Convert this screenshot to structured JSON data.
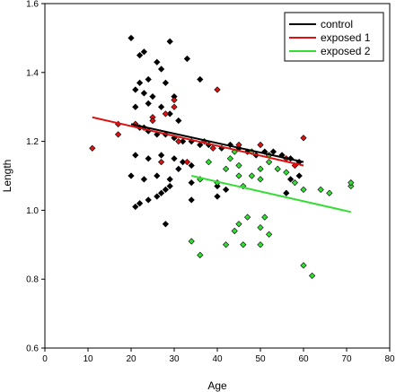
{
  "chart_data": {
    "type": "scatter",
    "title": "",
    "xlabel": "Age",
    "ylabel": "Length",
    "xlim": [
      0,
      80
    ],
    "ylim": [
      0.6,
      1.6
    ],
    "xticks": [
      0,
      10,
      20,
      30,
      40,
      50,
      60,
      70,
      80
    ],
    "yticks": [
      0.6,
      0.8,
      1.0,
      1.2,
      1.4,
      1.6
    ],
    "ytick_labels": [
      "0.6",
      "0.8",
      "1.0",
      "1.2",
      "1.4",
      "1.6"
    ],
    "grid": false,
    "legend_position": "top-right",
    "series": [
      {
        "name": "control",
        "color": "#000000",
        "points": [
          [
            20,
            1.5
          ],
          [
            29,
            1.49
          ],
          [
            23,
            1.46
          ],
          [
            22,
            1.45
          ],
          [
            26,
            1.43
          ],
          [
            27,
            1.41
          ],
          [
            24,
            1.38
          ],
          [
            33,
            1.44
          ],
          [
            36,
            1.38
          ],
          [
            22,
            1.37
          ],
          [
            21,
            1.35
          ],
          [
            23,
            1.34
          ],
          [
            25,
            1.33
          ],
          [
            28,
            1.37
          ],
          [
            30,
            1.33
          ],
          [
            24,
            1.31
          ],
          [
            21,
            1.3
          ],
          [
            27,
            1.3
          ],
          [
            29,
            1.28
          ],
          [
            31,
            1.26
          ],
          [
            21,
            1.25
          ],
          [
            22,
            1.24
          ],
          [
            23,
            1.24
          ],
          [
            24,
            1.23
          ],
          [
            26,
            1.22
          ],
          [
            28,
            1.22
          ],
          [
            30,
            1.21
          ],
          [
            32,
            1.2
          ],
          [
            34,
            1.2
          ],
          [
            36,
            1.19
          ],
          [
            38,
            1.19
          ],
          [
            41,
            1.18
          ],
          [
            43,
            1.19
          ],
          [
            45,
            1.18
          ],
          [
            47,
            1.17
          ],
          [
            49,
            1.16
          ],
          [
            51,
            1.17
          ],
          [
            53,
            1.17
          ],
          [
            55,
            1.16
          ],
          [
            57,
            1.15
          ],
          [
            59,
            1.14
          ],
          [
            21,
            1.16
          ],
          [
            24,
            1.15
          ],
          [
            27,
            1.16
          ],
          [
            30,
            1.15
          ],
          [
            32,
            1.14
          ],
          [
            20,
            1.1
          ],
          [
            23,
            1.09
          ],
          [
            26,
            1.1
          ],
          [
            29,
            1.09
          ],
          [
            31,
            1.12
          ],
          [
            34,
            1.13
          ],
          [
            22,
            1.02
          ],
          [
            21,
            1.01
          ],
          [
            27,
            1.05
          ],
          [
            28,
            1.06
          ],
          [
            29,
            1.07
          ],
          [
            26,
            1.04
          ],
          [
            24,
            1.03
          ],
          [
            34,
            1.08
          ],
          [
            40,
            1.07
          ],
          [
            42,
            1.06
          ],
          [
            56,
            1.05
          ],
          [
            59,
            1.1
          ],
          [
            57,
            1.09
          ],
          [
            28,
            0.96
          ],
          [
            34,
            1.03
          ],
          [
            40,
            1.04
          ]
        ]
      },
      {
        "name": "exposed 1",
        "color": "#dd1111",
        "points": [
          [
            11,
            1.18
          ],
          [
            17,
            1.22
          ],
          [
            17,
            1.25
          ],
          [
            21,
            1.25
          ],
          [
            25,
            1.27
          ],
          [
            25,
            1.26
          ],
          [
            28,
            1.28
          ],
          [
            30,
            1.32
          ],
          [
            30,
            1.3
          ],
          [
            31,
            1.2
          ],
          [
            33,
            1.14
          ],
          [
            37,
            1.2
          ],
          [
            39,
            1.18
          ],
          [
            40,
            1.35
          ],
          [
            45,
            1.19
          ],
          [
            48,
            1.17
          ],
          [
            50,
            1.19
          ],
          [
            52,
            1.16
          ],
          [
            56,
            1.15
          ],
          [
            58,
            1.13
          ],
          [
            60,
            1.21
          ],
          [
            27,
            1.14
          ]
        ]
      },
      {
        "name": "exposed 2",
        "color": "#33dd33",
        "points": [
          [
            36,
            1.09
          ],
          [
            38,
            1.14
          ],
          [
            40,
            1.08
          ],
          [
            42,
            1.12
          ],
          [
            43,
            1.15
          ],
          [
            44,
            1.17
          ],
          [
            45,
            1.13
          ],
          [
            45,
            1.1
          ],
          [
            46,
            1.07
          ],
          [
            48,
            1.17
          ],
          [
            48,
            1.1
          ],
          [
            50,
            1.12
          ],
          [
            50,
            1.09
          ],
          [
            52,
            1.16
          ],
          [
            52,
            1.14
          ],
          [
            54,
            1.12
          ],
          [
            56,
            1.11
          ],
          [
            58,
            1.08
          ],
          [
            60,
            1.06
          ],
          [
            64,
            1.06
          ],
          [
            66,
            1.05
          ],
          [
            71,
            1.07
          ],
          [
            71,
            1.08
          ],
          [
            34,
            0.91
          ],
          [
            36,
            0.87
          ],
          [
            42,
            0.9
          ],
          [
            44,
            0.94
          ],
          [
            46,
            0.9
          ],
          [
            47,
            0.98
          ],
          [
            50,
            0.95
          ],
          [
            51,
            0.98
          ],
          [
            52,
            0.93
          ],
          [
            50,
            0.9
          ],
          [
            60,
            0.84
          ],
          [
            62,
            0.81
          ],
          [
            45,
            0.96
          ]
        ]
      }
    ],
    "trend_lines": [
      {
        "series": "control",
        "x": [
          20,
          60
        ],
        "y": [
          1.25,
          1.14
        ]
      },
      {
        "series": "exposed 1",
        "x": [
          11,
          60
        ],
        "y": [
          1.27,
          1.13
        ]
      },
      {
        "series": "exposed 2",
        "x": [
          34,
          71
        ],
        "y": [
          1.1,
          0.995
        ]
      }
    ]
  }
}
